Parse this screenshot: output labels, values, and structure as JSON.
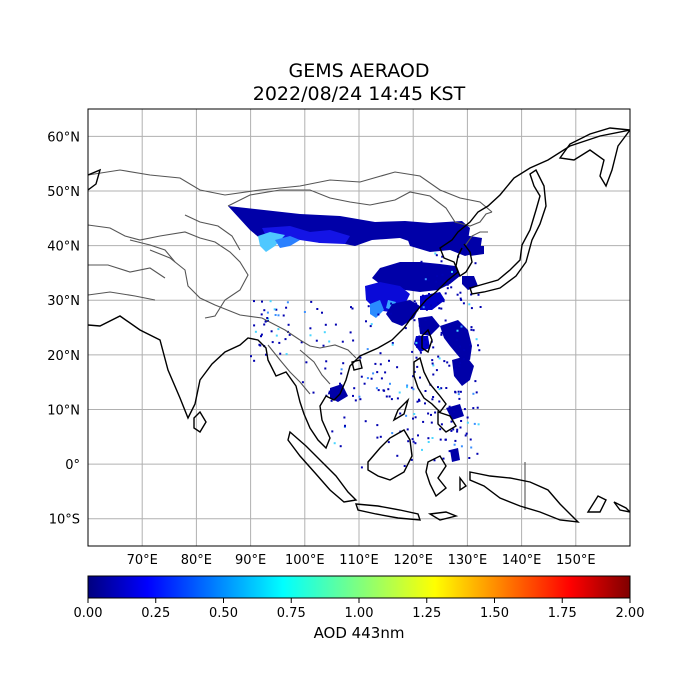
{
  "title": "GEMS AERAOD",
  "subtitle": "2022/08/24 14:45 KST",
  "map": {
    "lon_range": [
      60,
      160
    ],
    "lat_range": [
      -15,
      65
    ],
    "lon_ticks": [
      {
        "value": 70,
        "label": "70°E"
      },
      {
        "value": 80,
        "label": "80°E"
      },
      {
        "value": 90,
        "label": "90°E"
      },
      {
        "value": 100,
        "label": "100°E"
      },
      {
        "value": 110,
        "label": "110°E"
      },
      {
        "value": 120,
        "label": "120°E"
      },
      {
        "value": 130,
        "label": "130°E"
      },
      {
        "value": 140,
        "label": "140°E"
      },
      {
        "value": 150,
        "label": "150°E"
      }
    ],
    "lat_ticks": [
      {
        "value": 60,
        "label": "60°N"
      },
      {
        "value": 50,
        "label": "50°N"
      },
      {
        "value": 40,
        "label": "40°N"
      },
      {
        "value": 30,
        "label": "30°N"
      },
      {
        "value": 20,
        "label": "20°N"
      },
      {
        "value": 10,
        "label": "10°N"
      },
      {
        "value": 0,
        "label": "0°"
      },
      {
        "value": -10,
        "label": "10°S"
      }
    ],
    "grid": true
  },
  "colorbar": {
    "label": "AOD 443nm",
    "range": [
      0,
      2
    ],
    "colormap": "jet",
    "ticks": [
      "0.00",
      "0.25",
      "0.50",
      "0.75",
      "1.00",
      "1.25",
      "1.50",
      "1.75",
      "2.00"
    ]
  },
  "colors": {
    "low_aod": "#0000a8",
    "mid_aod": "#1a1aff",
    "higher_aod": "#3fa0ff",
    "coast": "#000000",
    "border": "#555555",
    "grid": "#b0b0b0"
  }
}
